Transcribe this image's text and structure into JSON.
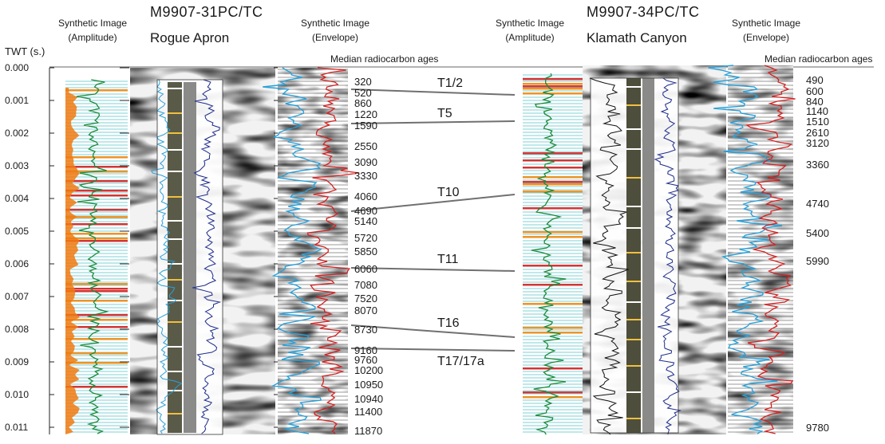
{
  "left_core": {
    "id": "M9907-31PC/TC",
    "site": "Rogue Apron",
    "amp_header": [
      "Synthetic Image",
      "(Amplitude)"
    ],
    "env_header": [
      "Synthetic Image",
      "(Envelope)"
    ],
    "ages_header": "Median radiocarbon ages",
    "ages": [
      "320",
      "520",
      "860",
      "1220",
      "1590",
      "2550",
      "3090",
      "3330",
      "4060",
      "4690",
      "5140",
      "5720",
      "5850",
      "6060",
      "7080",
      "7520",
      "8070",
      "8730",
      "9160",
      "9760",
      "10200",
      "10950",
      "10940",
      "11400",
      "11870"
    ]
  },
  "right_core": {
    "id": "M9907-34PC/TC",
    "site": "Klamath Canyon",
    "amp_header": [
      "Synthetic Image",
      "(Amplitude)"
    ],
    "env_header": [
      "Synthetic Image",
      "(Envelope)"
    ],
    "ages_header": "Median radiocarbon ages",
    "ages": [
      "490",
      "600",
      "840",
      "1140",
      "1510",
      "2610",
      "3120",
      "3360",
      "4740",
      "5400",
      "5990",
      "9780"
    ]
  },
  "axis": {
    "label": "TWT (s.)",
    "ticks": [
      "0.000",
      "0.001",
      "0.002",
      "0.003",
      "0.004",
      "0.005",
      "0.006",
      "0.007",
      "0.008",
      "0.009",
      "0.010",
      "0.011"
    ]
  },
  "events": [
    "T1/2",
    "T5",
    "T10",
    "T11",
    "T16",
    "T17/17a"
  ],
  "colors": {
    "green": "#1a8a3a",
    "blue": "#2aa0d8",
    "red": "#d42020",
    "orange": "#f08a10",
    "cyan": "#40c0c8",
    "correlation": "#707070"
  }
}
